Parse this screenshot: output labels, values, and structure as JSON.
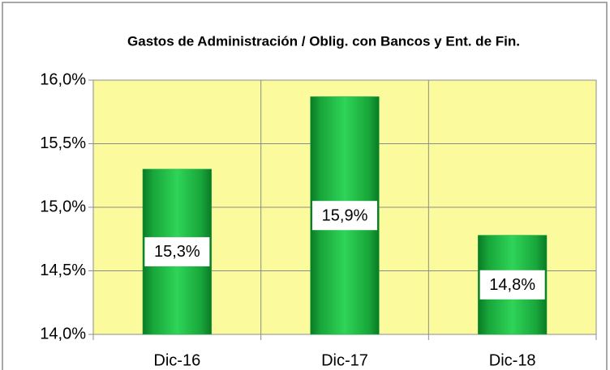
{
  "chart_data": {
    "type": "bar",
    "title": "Gastos de Administración / Oblig. con Bancos y Ent. de Fin.",
    "categories": [
      "Dic-16",
      "Dic-17",
      "Dic-18"
    ],
    "values": [
      15.3,
      15.87,
      14.78
    ],
    "value_labels": [
      "15,3%",
      "15,9%",
      "14,8%"
    ],
    "color": "#1fae3e",
    "ylim": [
      14,
      16
    ],
    "yticks": [
      {
        "value": 14,
        "label": "14,0%"
      },
      {
        "value": 14.5,
        "label": "14,5%"
      },
      {
        "value": 15,
        "label": "15,0%"
      },
      {
        "value": 15.5,
        "label": "15,5%"
      },
      {
        "value": 16,
        "label": "16,0%"
      }
    ],
    "grid": true
  }
}
